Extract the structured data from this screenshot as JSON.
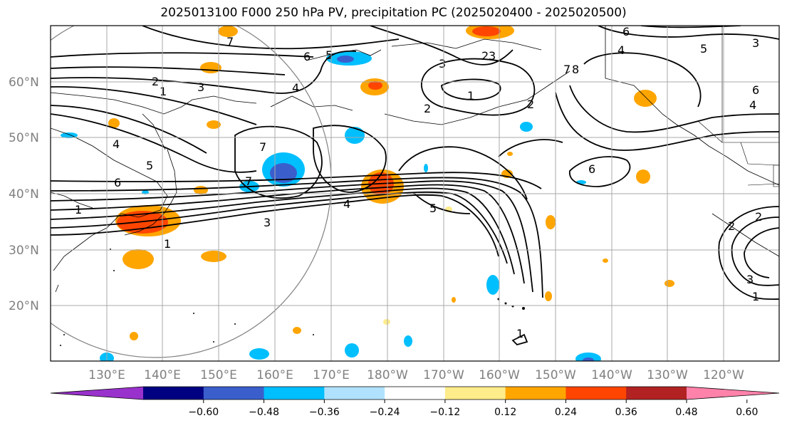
{
  "title": "2025013100 F000 250 hPa PV, precipitation PC (2025020400 - 2025020500)",
  "lat_labels": [
    "60°N",
    "50°N",
    "40°N",
    "30°N",
    "20°N"
  ],
  "lon_labels": [
    "130°E",
    "140°E",
    "150°E",
    "160°E",
    "170°E",
    "180°W",
    "170°W",
    "160°W",
    "150°W",
    "140°W",
    "130°W",
    "120°W"
  ],
  "contour_labels": [
    "7",
    "6",
    "5",
    "4",
    "3",
    "2",
    "1",
    "2",
    "3",
    "4",
    "5",
    "6",
    "7",
    "1",
    "2",
    "3",
    "4",
    "5",
    "6",
    "7",
    "8",
    "6",
    "4",
    "3",
    "2",
    "1",
    "2",
    "3",
    "1",
    "1",
    "4",
    "5",
    "6",
    "7",
    "2",
    "3",
    "1"
  ],
  "colorbar": {
    "ticks": [
      "−0.60",
      "−0.48",
      "−0.36",
      "−0.24",
      "−0.12",
      "0.12",
      "0.24",
      "0.36",
      "0.48",
      "0.60"
    ],
    "colors": [
      "#9932cc",
      "#000080",
      "#3a5fcd",
      "#00bfff",
      "#b0e2ff",
      "#ffffff",
      "#ffec8b",
      "#ffa500",
      "#ff4500",
      "#b22222",
      "#ff82ab"
    ]
  }
}
